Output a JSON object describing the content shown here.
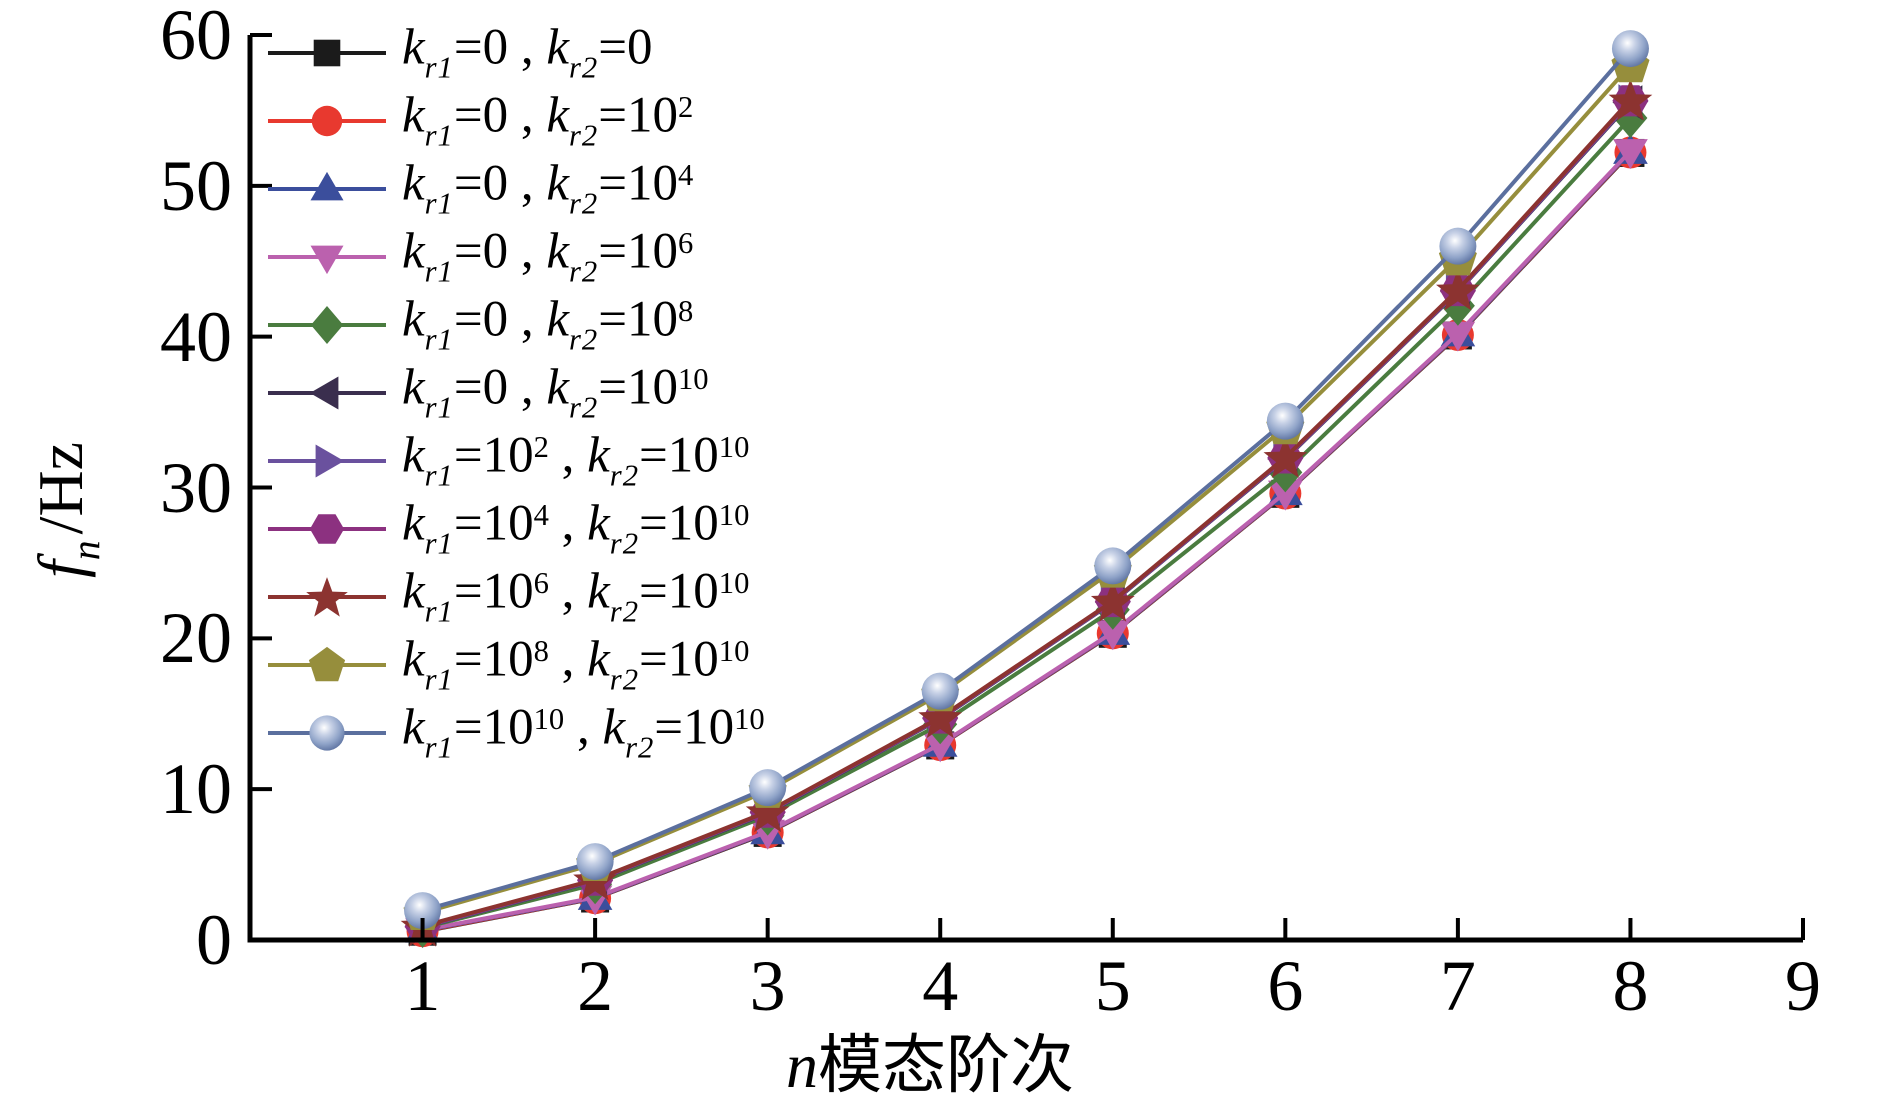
{
  "figure": {
    "background": "#ffffff",
    "axis_color": "#000000"
  },
  "axes": {
    "ylabel": {
      "base": "f",
      "sub": "n",
      "rest": "/Hz"
    },
    "xlabel": {
      "base": "n",
      "rest": "模态阶次"
    },
    "ytick_labels": [
      "0",
      "10",
      "20",
      "30",
      "40",
      "50",
      "60"
    ],
    "xtick_labels": [
      "1",
      "2",
      "3",
      "4",
      "5",
      "6",
      "7",
      "8",
      "9"
    ]
  },
  "chart_data": {
    "type": "line",
    "title": "",
    "xlabel": "n 模态阶次",
    "ylabel": "fn /Hz",
    "x": [
      1,
      2,
      3,
      4,
      5,
      6,
      7,
      8
    ],
    "xlim": [
      0,
      9
    ],
    "ylim": [
      0,
      60
    ],
    "xticks": [
      1,
      2,
      3,
      4,
      5,
      6,
      7,
      8,
      9
    ],
    "yticks": [
      0,
      10,
      20,
      30,
      40,
      50,
      60
    ],
    "grid": false,
    "legend_position": "top-left-inside",
    "series": [
      {
        "name": "kr1=0, kr2=0",
        "marker": "square",
        "color": "#1b1b1b",
        "values": [
          0.55,
          2.75,
          7.1,
          12.9,
          20.3,
          29.58,
          40.08,
          52.18
        ],
        "label": {
          "var1": "k",
          "sub1": "r1",
          "eq1": "=",
          "val1": "0",
          "exp1": "",
          "comma": " , ",
          "var2": "k",
          "sub2": "r2",
          "eq2": "=",
          "val2": "0",
          "exp2": ""
        }
      },
      {
        "name": "kr1=0, kr2=10^2",
        "marker": "circle",
        "color": "#e8392f",
        "values": [
          0.58,
          2.77,
          7.13,
          12.92,
          20.33,
          29.6,
          40.11,
          52.21
        ],
        "label": {
          "var1": "k",
          "sub1": "r1",
          "eq1": "=",
          "val1": "0",
          "exp1": "",
          "comma": " , ",
          "var2": "k",
          "sub2": "r2",
          "eq2": "=",
          "val2": "10",
          "exp2": "2"
        }
      },
      {
        "name": "kr1=0, kr2=10^4",
        "marker": "triangle-up",
        "color": "#3b4e9c",
        "values": [
          0.62,
          2.79,
          7.15,
          12.94,
          20.36,
          29.63,
          40.15,
          52.25
        ],
        "label": {
          "var1": "k",
          "sub1": "r1",
          "eq1": "=",
          "val1": "0",
          "exp1": "",
          "comma": " , ",
          "var2": "k",
          "sub2": "r2",
          "eq2": "=",
          "val2": "10",
          "exp2": "4"
        }
      },
      {
        "name": "kr1=0, kr2=10^6",
        "marker": "triangle-down",
        "color": "#bb61ae",
        "values": [
          0.65,
          2.82,
          7.18,
          12.97,
          20.4,
          29.66,
          40.2,
          52.3
        ],
        "label": {
          "var1": "k",
          "sub1": "r1",
          "eq1": "=",
          "val1": "0",
          "exp1": "",
          "comma": " , ",
          "var2": "k",
          "sub2": "r2",
          "eq2": "=",
          "val2": "10",
          "exp2": "6"
        }
      },
      {
        "name": "kr1=0, kr2=10^8",
        "marker": "diamond",
        "color": "#4a7c3f",
        "values": [
          0.8,
          3.7,
          8.25,
          14.3,
          21.9,
          31.0,
          42.05,
          54.5
        ],
        "label": {
          "var1": "k",
          "sub1": "r1",
          "eq1": "=",
          "val1": "0",
          "exp1": "",
          "comma": " , ",
          "var2": "k",
          "sub2": "r2",
          "eq2": "=",
          "val2": "10",
          "exp2": "8"
        }
      },
      {
        "name": "kr1=0, kr2=10^10",
        "marker": "triangle-left",
        "color": "#3a2e4e",
        "values": [
          0.85,
          3.92,
          8.42,
          14.66,
          22.38,
          31.88,
          42.98,
          55.52
        ],
        "label": {
          "var1": "k",
          "sub1": "r1",
          "eq1": "=",
          "val1": "0",
          "exp1": "",
          "comma": " , ",
          "var2": "k",
          "sub2": "r2",
          "eq2": "=",
          "val2": "10",
          "exp2": "10"
        }
      },
      {
        "name": "kr1=10^2, kr2=10^10",
        "marker": "triangle-right",
        "color": "#6a519e",
        "values": [
          0.87,
          3.94,
          8.45,
          14.69,
          22.41,
          31.92,
          43.02,
          55.58
        ],
        "label": {
          "var1": "k",
          "sub1": "r1",
          "eq1": "=",
          "val1": "10",
          "exp1": "2",
          "comma": " , ",
          "var2": "k",
          "sub2": "r2",
          "eq2": "=",
          "val2": "10",
          "exp2": "10"
        }
      },
      {
        "name": "kr1=10^4, kr2=10^10",
        "marker": "hexagon",
        "color": "#8c3180",
        "values": [
          0.9,
          3.97,
          8.48,
          14.72,
          22.44,
          31.96,
          43.06,
          55.64
        ],
        "label": {
          "var1": "k",
          "sub1": "r1",
          "eq1": "=",
          "val1": "10",
          "exp1": "4",
          "comma": " , ",
          "var2": "k",
          "sub2": "r2",
          "eq2": "=",
          "val2": "10",
          "exp2": "10"
        }
      },
      {
        "name": "kr1=10^6, kr2=10^10",
        "marker": "star",
        "color": "#8c3330",
        "values": [
          0.93,
          4.0,
          8.51,
          14.75,
          22.47,
          32.0,
          43.1,
          55.7
        ],
        "label": {
          "var1": "k",
          "sub1": "r1",
          "eq1": "=",
          "val1": "10",
          "exp1": "6",
          "comma": " , ",
          "var2": "k",
          "sub2": "r2",
          "eq2": "=",
          "val2": "10",
          "exp2": "10"
        }
      },
      {
        "name": "kr1=10^8, kr2=10^10",
        "marker": "pentagon",
        "color": "#968e3c",
        "values": [
          1.8,
          5.05,
          9.9,
          16.3,
          24.5,
          34.0,
          45.2,
          58.0
        ],
        "label": {
          "var1": "k",
          "sub1": "r1",
          "eq1": "=",
          "val1": "10",
          "exp1": "8",
          "comma": " , ",
          "var2": "k",
          "sub2": "r2",
          "eq2": "=",
          "val2": "10",
          "exp2": "10"
        }
      },
      {
        "name": "kr1=10^10, kr2=10^10",
        "marker": "sphere",
        "color": "#5b6f9e",
        "values": [
          1.95,
          5.2,
          10.1,
          16.5,
          24.8,
          34.4,
          46.0,
          59.1
        ],
        "label": {
          "var1": "k",
          "sub1": "r1",
          "eq1": "=",
          "val1": "10",
          "exp1": "10",
          "comma": " , ",
          "var2": "k",
          "sub2": "r2",
          "eq2": "=",
          "val2": "10",
          "exp2": "10"
        }
      }
    ],
    "sphere_marker_colors": {
      "highlight": "#ffffff",
      "mid": "#8fa3c8",
      "edge": "#4d6394"
    }
  }
}
